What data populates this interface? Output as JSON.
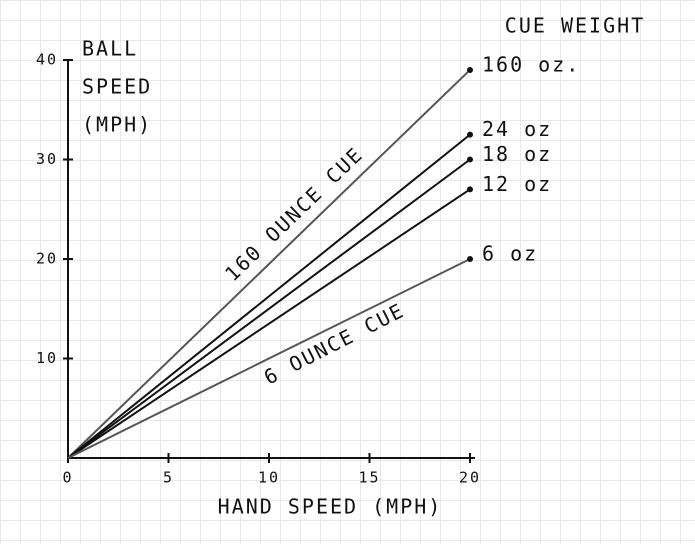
{
  "chart_data": {
    "type": "line",
    "legend_title": "CUE WEIGHT",
    "y_label": [
      "BALL",
      "SPEED",
      "(MPH)"
    ],
    "x_label": "HAND SPEED (MPH)",
    "annotations": [
      "160 OUNCE CUE",
      "6 OUNCE CUE"
    ],
    "x": [
      0,
      20
    ],
    "series": [
      {
        "name": "160 oz.",
        "color": "#555555",
        "values": [
          0,
          39
        ]
      },
      {
        "name": "24 oz",
        "color": "#111111",
        "values": [
          0,
          32.5
        ]
      },
      {
        "name": "18 oz",
        "color": "#111111",
        "values": [
          0,
          30
        ]
      },
      {
        "name": "12 oz",
        "color": "#111111",
        "values": [
          0,
          27
        ]
      },
      {
        "name": "6 oz",
        "color": "#555555",
        "values": [
          0,
          20
        ]
      }
    ],
    "xlim": [
      0,
      20
    ],
    "ylim": [
      0,
      40
    ],
    "xticks": [
      0,
      5,
      10,
      15,
      20
    ],
    "yticks": [
      10,
      20,
      30,
      40
    ],
    "grid": true
  }
}
